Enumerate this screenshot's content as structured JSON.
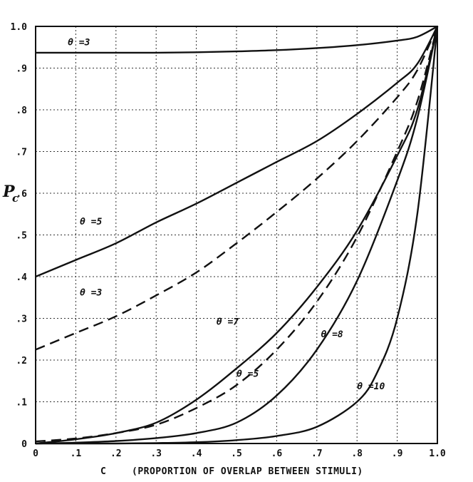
{
  "chart_data": {
    "type": "line",
    "title": "",
    "xlabel_letter": "C",
    "xlabel_desc": "(PROPORTION OF OVERLAP BETWEEN STIMULI)",
    "ylabel_main": "P",
    "ylabel_sub": "c",
    "xlim": [
      0,
      1
    ],
    "ylim": [
      0,
      1
    ],
    "grid": true,
    "x_ticks": [
      {
        "v": 0,
        "label": "0"
      },
      {
        "v": 0.1,
        "label": ".1"
      },
      {
        "v": 0.2,
        "label": ".2"
      },
      {
        "v": 0.3,
        "label": ".3"
      },
      {
        "v": 0.4,
        "label": ".4"
      },
      {
        "v": 0.5,
        "label": ".5"
      },
      {
        "v": 0.6,
        "label": ".6"
      },
      {
        "v": 0.7,
        "label": ".7"
      },
      {
        "v": 0.8,
        "label": ".8"
      },
      {
        "v": 0.9,
        "label": ".9"
      },
      {
        "v": 1.0,
        "label": "1.0"
      }
    ],
    "y_ticks": [
      {
        "v": 0,
        "label": "0"
      },
      {
        "v": 0.1,
        "label": ".1"
      },
      {
        "v": 0.2,
        "label": ".2"
      },
      {
        "v": 0.3,
        "label": ".3"
      },
      {
        "v": 0.4,
        "label": ".4"
      },
      {
        "v": 0.5,
        "label": ".5"
      },
      {
        "v": 0.6,
        "label": ".6"
      },
      {
        "v": 0.7,
        "label": ".7"
      },
      {
        "v": 0.8,
        "label": ".8"
      },
      {
        "v": 0.9,
        "label": ".9"
      },
      {
        "v": 1.0,
        "label": "1.0"
      }
    ],
    "series": [
      {
        "label": "θ =3",
        "style": "solid",
        "label_at": [
          0.08,
          0.955
        ],
        "x": [
          0,
          0.1,
          0.2,
          0.3,
          0.4,
          0.5,
          0.6,
          0.7,
          0.8,
          0.9,
          0.95,
          1.0
        ],
        "y": [
          0.937,
          0.937,
          0.937,
          0.937,
          0.938,
          0.94,
          0.943,
          0.948,
          0.955,
          0.966,
          0.975,
          1.0
        ]
      },
      {
        "label": "θ =5",
        "style": "solid",
        "label_at": [
          0.11,
          0.525
        ],
        "x": [
          0,
          0.1,
          0.2,
          0.3,
          0.4,
          0.5,
          0.6,
          0.7,
          0.8,
          0.9,
          0.95,
          1.0
        ],
        "y": [
          0.4,
          0.44,
          0.48,
          0.53,
          0.575,
          0.625,
          0.675,
          0.725,
          0.79,
          0.865,
          0.91,
          1.0
        ]
      },
      {
        "label": "θ =3",
        "style": "dashed",
        "label_at": [
          0.11,
          0.355
        ],
        "x": [
          0,
          0.1,
          0.2,
          0.3,
          0.4,
          0.5,
          0.6,
          0.7,
          0.8,
          0.9,
          0.95,
          1.0
        ],
        "y": [
          0.225,
          0.265,
          0.305,
          0.355,
          0.41,
          0.48,
          0.555,
          0.635,
          0.725,
          0.83,
          0.895,
          1.0
        ]
      },
      {
        "label": "θ =7",
        "style": "solid",
        "label_at": [
          0.45,
          0.285
        ],
        "x": [
          0,
          0.1,
          0.2,
          0.3,
          0.4,
          0.5,
          0.6,
          0.7,
          0.8,
          0.9,
          0.95,
          1.0
        ],
        "y": [
          0.0,
          0.01,
          0.025,
          0.05,
          0.105,
          0.18,
          0.265,
          0.375,
          0.51,
          0.69,
          0.8,
          1.0
        ]
      },
      {
        "label": "θ =5",
        "style": "dashed",
        "label_at": [
          0.5,
          0.16
        ],
        "x": [
          0,
          0.1,
          0.2,
          0.3,
          0.4,
          0.5,
          0.6,
          0.7,
          0.8,
          0.9,
          0.95,
          1.0
        ],
        "y": [
          0.005,
          0.012,
          0.025,
          0.045,
          0.085,
          0.14,
          0.225,
          0.34,
          0.495,
          0.7,
          0.82,
          1.0
        ]
      },
      {
        "label": "θ =8",
        "style": "solid",
        "label_at": [
          0.71,
          0.255
        ],
        "x": [
          0,
          0.1,
          0.2,
          0.3,
          0.4,
          0.5,
          0.6,
          0.7,
          0.8,
          0.9,
          0.95,
          1.0
        ],
        "y": [
          0.0,
          0.002,
          0.006,
          0.013,
          0.025,
          0.05,
          0.115,
          0.225,
          0.39,
          0.63,
          0.78,
          1.0
        ]
      },
      {
        "label": "θ =10",
        "style": "solid",
        "label_at": [
          0.8,
          0.13
        ],
        "x": [
          0,
          0.1,
          0.2,
          0.3,
          0.4,
          0.5,
          0.6,
          0.7,
          0.8,
          0.85,
          0.9,
          0.95,
          1.0
        ],
        "y": [
          0.0,
          0.0,
          0.0,
          0.001,
          0.003,
          0.008,
          0.018,
          0.04,
          0.1,
          0.17,
          0.3,
          0.55,
          1.0
        ]
      }
    ]
  }
}
